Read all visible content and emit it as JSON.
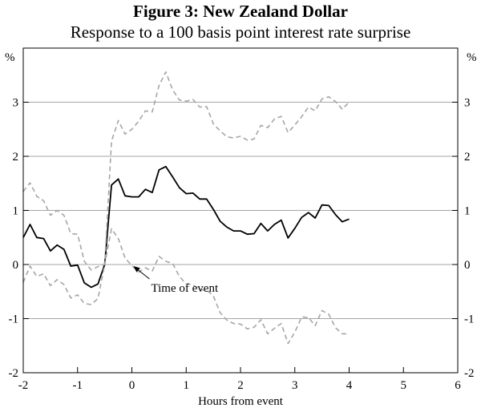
{
  "chart_data": {
    "type": "line",
    "title": "Figure 3: New Zealand Dollar",
    "subtitle": "Response to a 100 basis point interest rate surprise",
    "xlabel": "Hours from event",
    "ylabel_left": "%",
    "ylabel_right": "%",
    "xlim": [
      -2,
      6
    ],
    "ylim": [
      -2,
      4
    ],
    "x_ticks": [
      "-2",
      "-1",
      "0",
      "1",
      "2",
      "3",
      "4",
      "5",
      "6"
    ],
    "y_ticks": [
      "-2",
      "-1",
      "0",
      "1",
      "2",
      "3"
    ],
    "y_gridlines": [
      -1,
      0,
      1,
      2,
      3
    ],
    "annotation": {
      "text": "Time of event",
      "x": 0,
      "y": 0
    },
    "x": [
      -2.0,
      -1.875,
      -1.75,
      -1.625,
      -1.5,
      -1.375,
      -1.25,
      -1.125,
      -1.0,
      -0.875,
      -0.75,
      -0.625,
      -0.5,
      -0.375,
      -0.25,
      -0.125,
      0.0,
      0.125,
      0.25,
      0.375,
      0.5,
      0.625,
      0.75,
      0.875,
      1.0,
      1.125,
      1.25,
      1.375,
      1.5,
      1.625,
      1.75,
      1.875,
      2.0,
      2.125,
      2.25,
      2.375,
      2.5,
      2.625,
      2.75,
      2.875,
      3.0,
      3.125,
      3.25,
      3.375,
      3.5,
      3.625,
      3.75,
      3.875,
      4.0,
      4.125,
      4.25,
      4.375,
      4.5,
      4.625,
      4.75,
      4.875,
      5.0,
      5.125,
      5.25,
      5.375,
      5.5,
      5.625,
      5.75,
      5.875,
      6.0
    ],
    "series": [
      {
        "style": "solid",
        "color": "#000000",
        "values": [
          0.5,
          0.74,
          0.5,
          0.48,
          0.25,
          0.36,
          0.28,
          -0.03,
          -0.01,
          -0.34,
          -0.42,
          -0.36,
          0.0,
          1.47,
          1.58,
          1.27,
          1.25,
          1.25,
          1.39,
          1.33,
          1.75,
          1.81,
          1.62,
          1.42,
          1.31,
          1.32,
          1.21,
          1.21,
          1.02,
          0.8,
          0.69,
          0.62,
          0.62,
          0.56,
          0.57,
          0.76,
          0.62,
          0.74,
          0.82,
          0.49,
          0.67,
          0.87,
          0.96,
          0.86,
          1.1,
          1.09,
          0.92,
          0.79,
          0.84,
          null,
          null,
          null,
          null,
          null,
          null,
          null,
          null,
          null,
          null,
          null,
          null,
          null,
          null,
          null,
          null
        ]
      },
      {
        "style": "dashed",
        "color": "#a6a6a6",
        "values": [
          1.35,
          1.51,
          1.26,
          1.18,
          0.91,
          1.0,
          0.91,
          0.57,
          0.56,
          0.06,
          -0.1,
          -0.04,
          0.0,
          2.28,
          2.66,
          2.41,
          2.5,
          2.65,
          2.84,
          2.82,
          3.31,
          3.56,
          3.23,
          3.04,
          3.02,
          3.05,
          2.91,
          2.92,
          2.6,
          2.47,
          2.36,
          2.34,
          2.37,
          2.3,
          2.32,
          2.57,
          2.53,
          2.69,
          2.74,
          2.44,
          2.58,
          2.73,
          2.91,
          2.84,
          3.06,
          3.1,
          3.01,
          2.87,
          3.0,
          null,
          null,
          null,
          null,
          null,
          null,
          null,
          null,
          null,
          null,
          null,
          null,
          null,
          null,
          null,
          null
        ]
      },
      {
        "style": "dashed",
        "color": "#a6a6a6",
        "values": [
          -0.33,
          -0.03,
          -0.22,
          -0.17,
          -0.39,
          -0.28,
          -0.37,
          -0.62,
          -0.56,
          -0.72,
          -0.74,
          -0.63,
          0.0,
          0.66,
          0.48,
          0.12,
          -0.02,
          -0.14,
          -0.06,
          -0.12,
          0.15,
          0.06,
          0.02,
          -0.22,
          -0.36,
          -0.37,
          -0.47,
          -0.47,
          -0.58,
          -0.89,
          -1.03,
          -1.09,
          -1.1,
          -1.19,
          -1.16,
          -1.02,
          -1.28,
          -1.18,
          -1.09,
          -1.46,
          -1.25,
          -0.97,
          -0.98,
          -1.13,
          -0.85,
          -0.92,
          -1.17,
          -1.28,
          -1.28,
          null,
          null,
          null,
          null,
          null,
          null,
          null,
          null,
          null,
          null,
          null,
          null,
          null,
          null,
          null,
          null
        ]
      }
    ]
  }
}
